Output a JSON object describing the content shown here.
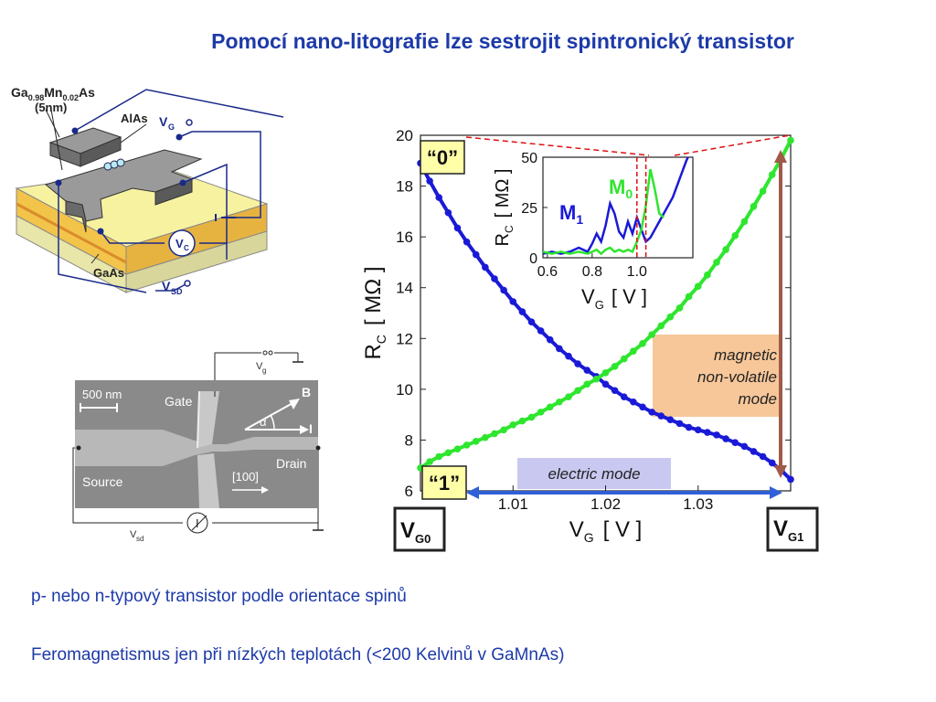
{
  "title": "Pomocí nano-litografie lze sestrojit spintronický transistor",
  "bullets": [
    "p- nebo n-typový transistor podle orientace spinů",
    "Feromagnetismus jen při nízkých teplotách  (<200 Kelvinů v GaMnAs)"
  ],
  "device": {
    "material_top_base": "Ga",
    "material_top_sub1": "0.98",
    "material_top_mn": "Mn",
    "material_top_sub2": "0.02",
    "material_top_as": "As",
    "thickness": "(5nm)",
    "alas": "AlAs",
    "gaas": "GaAs",
    "vg": "V",
    "vg_sub": "G",
    "vc": "V",
    "vc_sub": "C",
    "vsd": "V",
    "vsd_sub": "SD"
  },
  "sem": {
    "panel_label": "",
    "scale": "500 nm",
    "gate": "Gate",
    "source": "Source",
    "drain": "Drain",
    "b": "B",
    "i": "I",
    "alpha": "α",
    "direction": "[100]",
    "vg": "V",
    "vg_sub": "g",
    "vsd": "V",
    "vsd_sub": "sd",
    "meter": "I"
  },
  "main_chart": {
    "state0": "“0”",
    "state1": "“1”",
    "magnetic": [
      "magnetic",
      "non-volatile",
      "mode"
    ],
    "electric": "electric mode",
    "vg0": "V",
    "vg0_sub": "G0",
    "vg1": "V",
    "vg1_sub": "G1",
    "colors": {
      "blue": "#1a1ad6",
      "green": "#2ee62e",
      "orange": "#f7c79a",
      "brown": "#a05a4a",
      "arrow": "#3060d8",
      "electric_bg": "#c8c8f0",
      "dashed": "#dd1111"
    }
  },
  "chart_data": [
    {
      "type": "line",
      "xlabel": "V",
      "xlabel_sub": "G",
      "xlabel_units": "[ V ]",
      "ylabel": "R",
      "ylabel_sub": "C",
      "ylabel_units": "[ MΩ ]",
      "xlim": [
        1.0,
        1.04
      ],
      "ylim": [
        6,
        20
      ],
      "x_ticks": [
        "1.01",
        "1.02",
        "1.03"
      ],
      "x_tick_values": [
        1.01,
        1.02,
        1.03
      ],
      "y_ticks": [
        "6",
        "8",
        "10",
        "12",
        "14",
        "16",
        "18",
        "20"
      ],
      "y_tick_values": [
        6,
        8,
        10,
        12,
        14,
        16,
        18,
        20
      ],
      "series": [
        {
          "name": "",
          "color": "#1a1ad6",
          "x": [
            1.0,
            1.001,
            1.002,
            1.003,
            1.004,
            1.005,
            1.006,
            1.007,
            1.008,
            1.009,
            1.01,
            1.011,
            1.012,
            1.013,
            1.014,
            1.015,
            1.016,
            1.017,
            1.018,
            1.019,
            1.02,
            1.021,
            1.022,
            1.023,
            1.024,
            1.025,
            1.026,
            1.027,
            1.028,
            1.029,
            1.03,
            1.031,
            1.032,
            1.033,
            1.034,
            1.035,
            1.036,
            1.037,
            1.038,
            1.039,
            1.04
          ],
          "y": [
            18.9,
            18.2,
            17.55,
            16.95,
            16.35,
            15.8,
            15.3,
            14.8,
            14.35,
            13.9,
            13.45,
            13.05,
            12.65,
            12.3,
            11.95,
            11.6,
            11.3,
            11.0,
            10.75,
            10.5,
            10.2,
            9.95,
            9.7,
            9.5,
            9.3,
            9.1,
            8.95,
            8.8,
            8.65,
            8.5,
            8.4,
            8.3,
            8.2,
            8.05,
            7.9,
            7.75,
            7.55,
            7.35,
            7.1,
            6.8,
            6.45
          ]
        },
        {
          "name": "",
          "color": "#2ee62e",
          "x": [
            1.0,
            1.001,
            1.002,
            1.003,
            1.004,
            1.005,
            1.006,
            1.007,
            1.008,
            1.009,
            1.01,
            1.011,
            1.012,
            1.013,
            1.014,
            1.015,
            1.016,
            1.017,
            1.018,
            1.019,
            1.02,
            1.021,
            1.022,
            1.023,
            1.024,
            1.025,
            1.026,
            1.027,
            1.028,
            1.029,
            1.03,
            1.031,
            1.032,
            1.033,
            1.034,
            1.035,
            1.036,
            1.037,
            1.038,
            1.039,
            1.04
          ],
          "y": [
            6.9,
            7.15,
            7.35,
            7.5,
            7.65,
            7.8,
            7.95,
            8.1,
            8.25,
            8.4,
            8.6,
            8.75,
            8.9,
            9.1,
            9.3,
            9.5,
            9.7,
            9.95,
            10.2,
            10.4,
            10.65,
            10.9,
            11.2,
            11.5,
            11.8,
            12.15,
            12.5,
            12.85,
            13.2,
            13.65,
            14.05,
            14.5,
            15.0,
            15.5,
            16.05,
            16.6,
            17.2,
            17.8,
            18.45,
            19.1,
            19.8
          ]
        }
      ]
    },
    {
      "type": "line",
      "xlabel": "V",
      "xlabel_sub": "G",
      "xlabel_units": "[ V ]",
      "ylabel": "R",
      "ylabel_sub": "C",
      "ylabel_units": "[ MΩ ]",
      "xlim": [
        0.58,
        1.25
      ],
      "ylim": [
        0,
        50
      ],
      "x_ticks": [
        "0.6",
        "0.8",
        "1.0"
      ],
      "x_tick_values": [
        0.6,
        0.8,
        1.0
      ],
      "y_ticks": [
        "0",
        "25",
        "50"
      ],
      "y_tick_values": [
        0,
        25,
        50
      ],
      "annotations": [
        {
          "text": "M",
          "sub": "1",
          "color": "#1a1ad6"
        },
        {
          "text": "M",
          "sub": "0",
          "color": "#2ee62e"
        }
      ],
      "series": [
        {
          "name": "M1",
          "color": "#1a1ad6",
          "x": [
            0.58,
            0.62,
            0.66,
            0.7,
            0.74,
            0.78,
            0.8,
            0.82,
            0.84,
            0.86,
            0.88,
            0.9,
            0.92,
            0.94,
            0.96,
            0.98,
            1.0,
            1.02,
            1.04,
            1.06,
            1.08,
            1.1,
            1.12,
            1.14,
            1.16,
            1.18,
            1.2,
            1.22,
            1.24
          ],
          "y": [
            2,
            3,
            2,
            3,
            5,
            3,
            7,
            12,
            8,
            16,
            27,
            22,
            13,
            10,
            18,
            12,
            20,
            14,
            8,
            10,
            14,
            18,
            22,
            26,
            30,
            36,
            42,
            48,
            53
          ]
        },
        {
          "name": "M0",
          "color": "#2ee62e",
          "x": [
            0.58,
            0.62,
            0.66,
            0.7,
            0.74,
            0.78,
            0.8,
            0.82,
            0.84,
            0.86,
            0.88,
            0.9,
            0.92,
            0.94,
            0.96,
            0.98,
            1.0,
            1.02,
            1.04,
            1.06,
            1.08,
            1.1,
            1.12
          ],
          "y": [
            3,
            2,
            3,
            2,
            3,
            2,
            3,
            4,
            2,
            4,
            5,
            3,
            4,
            3,
            4,
            3,
            8,
            14,
            26,
            44,
            34,
            22,
            20
          ]
        }
      ]
    }
  ]
}
